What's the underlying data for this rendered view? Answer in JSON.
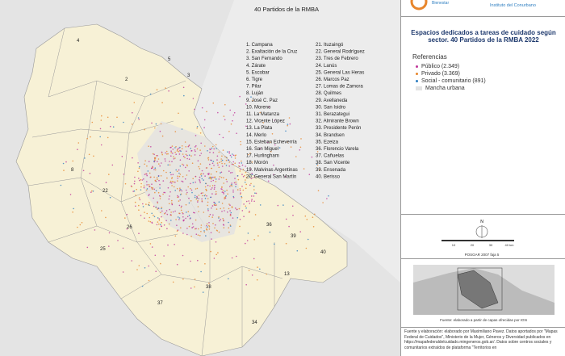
{
  "map": {
    "title": "40 Partidos  de la RMBA",
    "partidos": [
      "1. Campana",
      "2. Exaltación de la Cruz",
      "3. San Fernando",
      "4. Zárate",
      "5. Escobar",
      "6. Tigre",
      "7. Pilar",
      "8. Luján",
      "9. José C. Paz",
      "10. Moreno",
      "11. La Matanza",
      "12. Vicente López",
      "13. La Plata",
      "14. Merlo",
      "15. Esteban Echeverría",
      "16. San Miguel",
      "17. Hurlingham",
      "18. Morón",
      "19. Malvinas Argentinas",
      "20. General San Martín",
      "21. Ituzaingó",
      "22. General Rodríguez",
      "23. Tres de Febrero",
      "24. Lanús",
      "25. General Las Heras",
      "26. Marcos Paz",
      "27. Lomas de Zamora",
      "28. Quilmes",
      "29. Avellaneda",
      "30. San Isidro",
      "31. Berazategui",
      "32. Almirante Brown",
      "33. Presidente Perón",
      "34. Brandsen",
      "35. Ezeiza",
      "36. Florencio Varela",
      "37. Cañuelas",
      "38. San Vicente",
      "39. Ensenada",
      "40. Berisso"
    ],
    "labels": [
      "4",
      "3",
      "2",
      "5",
      "8",
      "22",
      "26",
      "25",
      "38",
      "37",
      "34",
      "39",
      "40",
      "13",
      "36"
    ]
  },
  "panel": {
    "logo_left": "Bienestar",
    "logo_right": "Instituto del Conurbano",
    "title": "Espacios dedicados a tareas de cuidado según sector. 40 Partidos de la RMBA 2022",
    "legend_title": "Referencias",
    "legend": [
      {
        "label": "Público (2.349)",
        "color": "#c0369a"
      },
      {
        "label": "Privado (3.369)",
        "color": "#e8862c"
      },
      {
        "label": "Social - comunitario (891)",
        "color": "#2f7fc1"
      },
      {
        "label": "Mancha urbana",
        "color": "#e2e2e2"
      }
    ],
    "north": "N",
    "scale": [
      "10",
      "20",
      "30",
      "40 km"
    ],
    "projection": "POSGAR 2007 faja 5",
    "inset_source": "Fuente: elaborado a partir de capas ofrecidas por IGN",
    "source": "Fuente y elaboración: elaborado por Maximiliano Pavez. Datos aportados por \"Mapas Federal de Cuidados\", Ministerio de la Mujer, Géneros y Diversidad publicados en https://mapafederaldelcuidado.mingeneros.gob.ar/. Datos sobre centros sociales y comunitarios extraídos de plataforma \"Territorios en"
  }
}
